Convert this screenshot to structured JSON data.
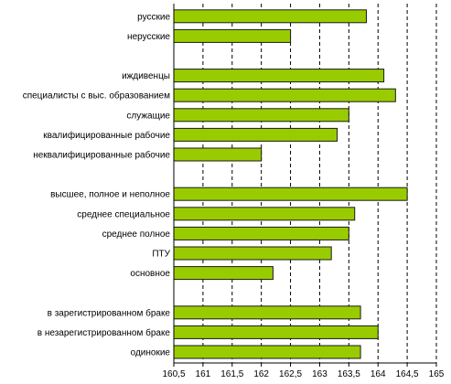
{
  "chart_data": {
    "type": "bar",
    "orientation": "horizontal",
    "title": "",
    "xlabel": "",
    "ylabel": "",
    "xlim": [
      160.5,
      165
    ],
    "ticks": [
      "160,5",
      "161",
      "161,5",
      "162",
      "162,5",
      "163",
      "163,5",
      "164",
      "164,5",
      "165"
    ],
    "tick_values": [
      160.5,
      161,
      161.5,
      162,
      162.5,
      163,
      163.5,
      164,
      164.5,
      165
    ],
    "grid": true,
    "bar_color": "#99cc00",
    "groups": [
      {
        "categories": [
          "русские",
          "нерусские"
        ],
        "values": [
          163.8,
          162.5
        ]
      },
      {
        "categories": [
          "иждивенцы",
          "специалисты с выс. образованием",
          "служащие",
          "квалифицированные рабочие",
          "неквалифицированные рабочие"
        ],
        "values": [
          164.1,
          164.3,
          163.5,
          163.3,
          162.0
        ]
      },
      {
        "categories": [
          "высшее, полное и неполное",
          "среднее специальное",
          "среднее полное",
          "ПТУ",
          "основное"
        ],
        "values": [
          164.5,
          163.6,
          163.5,
          163.2,
          162.2
        ]
      },
      {
        "categories": [
          "в зарегистрированном браке",
          "в незарегистрированном браке",
          "одинокие"
        ],
        "values": [
          163.7,
          164.0,
          163.7
        ]
      }
    ]
  }
}
